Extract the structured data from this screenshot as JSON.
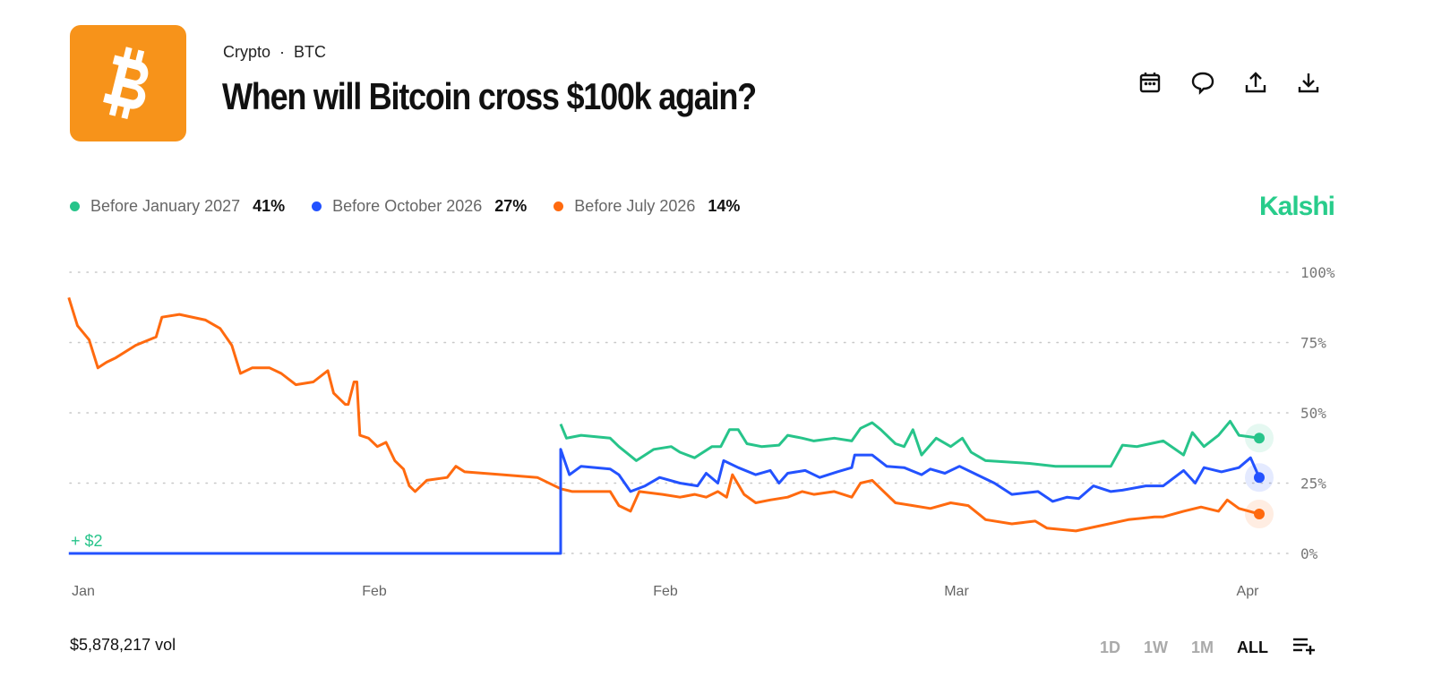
{
  "header": {
    "category": "Crypto",
    "ticker": "BTC",
    "separator": "·",
    "title": "When will Bitcoin cross $100k again?",
    "logo_icon": "bitcoin-icon",
    "brand_color": "#F7931A"
  },
  "actions": [
    {
      "icon": "calendar-icon"
    },
    {
      "icon": "comment-icon"
    },
    {
      "icon": "share-icon"
    },
    {
      "icon": "download-icon"
    }
  ],
  "brand": "Kalshi",
  "legend": [
    {
      "label": "Before January 2027",
      "value": "41%",
      "color": "#27C48A"
    },
    {
      "label": "Before October 2026",
      "value": "27%",
      "color": "#2352FF"
    },
    {
      "label": "Before July 2026",
      "value": "14%",
      "color": "#FF6A0F"
    }
  ],
  "footer": {
    "volume": "$5,878,217 vol",
    "timeframes": [
      "1D",
      "1W",
      "1M",
      "ALL"
    ],
    "active": "ALL",
    "menu_icon": "playlist-add-icon"
  },
  "chart_data": {
    "type": "line",
    "annotation": "+ $2",
    "xticks": [
      "Jan",
      "Feb",
      "Feb",
      "Mar",
      "Apr"
    ],
    "yticks": [
      "0%",
      "25%",
      "50%",
      "75%",
      "100%"
    ],
    "ylim": [
      0,
      100
    ],
    "xlim": [
      -0.05,
      4.04
    ],
    "grid": true,
    "series": [
      {
        "name": "Before January 2027",
        "color": "#27C48A",
        "points": [
          [
            1.64,
            46
          ],
          [
            1.66,
            41
          ],
          [
            1.71,
            42
          ],
          [
            1.81,
            41
          ],
          [
            1.84,
            38
          ],
          [
            1.9,
            33
          ],
          [
            1.96,
            37
          ],
          [
            2.02,
            38
          ],
          [
            2.05,
            36
          ],
          [
            2.1,
            34
          ],
          [
            2.16,
            38
          ],
          [
            2.19,
            38
          ],
          [
            2.22,
            44
          ],
          [
            2.25,
            44
          ],
          [
            2.28,
            39
          ],
          [
            2.33,
            38
          ],
          [
            2.39,
            38.5
          ],
          [
            2.42,
            42
          ],
          [
            2.47,
            41
          ],
          [
            2.51,
            40
          ],
          [
            2.58,
            41
          ],
          [
            2.64,
            40
          ],
          [
            2.67,
            44.5
          ],
          [
            2.71,
            46.5
          ],
          [
            2.74,
            44
          ],
          [
            2.79,
            39
          ],
          [
            2.82,
            38
          ],
          [
            2.85,
            44
          ],
          [
            2.88,
            35
          ],
          [
            2.93,
            41
          ],
          [
            2.98,
            38
          ],
          [
            3.02,
            41
          ],
          [
            3.05,
            36
          ],
          [
            3.1,
            33
          ],
          [
            3.25,
            32
          ],
          [
            3.34,
            31
          ],
          [
            3.47,
            31
          ],
          [
            3.53,
            31
          ],
          [
            3.57,
            38.5
          ],
          [
            3.62,
            38
          ],
          [
            3.71,
            40
          ],
          [
            3.78,
            35
          ],
          [
            3.81,
            43
          ],
          [
            3.85,
            38
          ],
          [
            3.9,
            42
          ],
          [
            3.94,
            47
          ],
          [
            3.97,
            42
          ],
          [
            4.04,
            41
          ]
        ]
      },
      {
        "name": "Before October 2026",
        "color": "#2352FF",
        "points": [
          [
            -0.05,
            0
          ],
          [
            1.64,
            0
          ],
          [
            1.64,
            37
          ],
          [
            1.67,
            28
          ],
          [
            1.71,
            31
          ],
          [
            1.81,
            30
          ],
          [
            1.84,
            28
          ],
          [
            1.88,
            22
          ],
          [
            1.93,
            24
          ],
          [
            1.98,
            27
          ],
          [
            2.05,
            25
          ],
          [
            2.11,
            24
          ],
          [
            2.14,
            28.5
          ],
          [
            2.18,
            25
          ],
          [
            2.2,
            33
          ],
          [
            2.25,
            30.5
          ],
          [
            2.31,
            28
          ],
          [
            2.36,
            29.5
          ],
          [
            2.39,
            25
          ],
          [
            2.42,
            28.5
          ],
          [
            2.48,
            29.5
          ],
          [
            2.53,
            27
          ],
          [
            2.59,
            29
          ],
          [
            2.64,
            30.5
          ],
          [
            2.65,
            35
          ],
          [
            2.71,
            35
          ],
          [
            2.76,
            31
          ],
          [
            2.82,
            30.5
          ],
          [
            2.88,
            28
          ],
          [
            2.91,
            30
          ],
          [
            2.96,
            28.5
          ],
          [
            3.01,
            31
          ],
          [
            3.07,
            28
          ],
          [
            3.13,
            25
          ],
          [
            3.19,
            21
          ],
          [
            3.28,
            22
          ],
          [
            3.33,
            18.5
          ],
          [
            3.38,
            20
          ],
          [
            3.42,
            19.5
          ],
          [
            3.47,
            24
          ],
          [
            3.53,
            22
          ],
          [
            3.57,
            22.5
          ],
          [
            3.65,
            24
          ],
          [
            3.71,
            24
          ],
          [
            3.78,
            29.5
          ],
          [
            3.82,
            25
          ],
          [
            3.85,
            30.5
          ],
          [
            3.91,
            29
          ],
          [
            3.97,
            30.5
          ],
          [
            4.01,
            34
          ],
          [
            4.04,
            27
          ]
        ]
      },
      {
        "name": "Before July 2026",
        "color": "#FF6A0F",
        "points": [
          [
            -0.05,
            91
          ],
          [
            -0.02,
            81
          ],
          [
            0.02,
            76
          ],
          [
            0.05,
            66
          ],
          [
            0.08,
            68
          ],
          [
            0.11,
            69.5
          ],
          [
            0.18,
            74
          ],
          [
            0.25,
            77
          ],
          [
            0.27,
            84
          ],
          [
            0.33,
            85
          ],
          [
            0.42,
            83
          ],
          [
            0.47,
            80
          ],
          [
            0.51,
            74
          ],
          [
            0.54,
            64
          ],
          [
            0.58,
            66
          ],
          [
            0.64,
            66
          ],
          [
            0.68,
            64
          ],
          [
            0.73,
            60
          ],
          [
            0.79,
            61
          ],
          [
            0.84,
            65
          ],
          [
            0.86,
            57
          ],
          [
            0.9,
            53
          ],
          [
            0.91,
            53
          ],
          [
            0.93,
            61
          ],
          [
            0.94,
            61
          ],
          [
            0.95,
            42
          ],
          [
            0.98,
            41
          ],
          [
            1.01,
            38
          ],
          [
            1.04,
            39.5
          ],
          [
            1.07,
            33
          ],
          [
            1.1,
            30
          ],
          [
            1.12,
            24
          ],
          [
            1.14,
            22
          ],
          [
            1.18,
            26
          ],
          [
            1.25,
            27
          ],
          [
            1.28,
            31
          ],
          [
            1.31,
            29
          ],
          [
            1.44,
            28
          ],
          [
            1.56,
            27
          ],
          [
            1.64,
            23
          ],
          [
            1.68,
            22
          ],
          [
            1.81,
            22
          ],
          [
            1.84,
            17
          ],
          [
            1.88,
            15
          ],
          [
            1.91,
            22
          ],
          [
            1.99,
            21
          ],
          [
            2.05,
            20
          ],
          [
            2.1,
            21
          ],
          [
            2.14,
            20
          ],
          [
            2.18,
            22
          ],
          [
            2.21,
            20
          ],
          [
            2.23,
            28
          ],
          [
            2.27,
            21
          ],
          [
            2.31,
            18
          ],
          [
            2.36,
            19
          ],
          [
            2.42,
            20
          ],
          [
            2.47,
            22
          ],
          [
            2.51,
            21
          ],
          [
            2.58,
            22
          ],
          [
            2.64,
            20
          ],
          [
            2.67,
            25
          ],
          [
            2.71,
            26
          ],
          [
            2.74,
            23
          ],
          [
            2.79,
            18
          ],
          [
            2.85,
            17
          ],
          [
            2.91,
            16
          ],
          [
            2.98,
            18
          ],
          [
            3.04,
            17
          ],
          [
            3.1,
            12
          ],
          [
            3.19,
            10.5
          ],
          [
            3.27,
            11.5
          ],
          [
            3.31,
            9
          ],
          [
            3.41,
            8
          ],
          [
            3.5,
            10
          ],
          [
            3.59,
            12
          ],
          [
            3.68,
            13
          ],
          [
            3.71,
            13
          ],
          [
            3.78,
            15
          ],
          [
            3.84,
            16.5
          ],
          [
            3.9,
            15
          ],
          [
            3.93,
            19
          ],
          [
            3.97,
            16
          ],
          [
            4.04,
            14
          ]
        ]
      }
    ]
  }
}
